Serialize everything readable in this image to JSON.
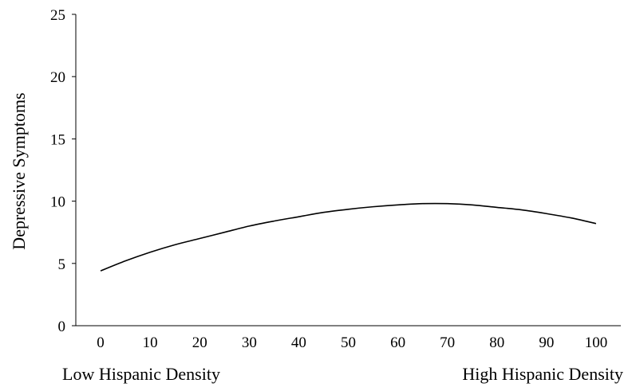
{
  "chart_data": {
    "type": "line",
    "title": "",
    "xlabel": "",
    "ylabel": "Depressive Symptoms",
    "xlim": [
      -5,
      105
    ],
    "ylim": [
      0,
      25
    ],
    "x_ticks": [
      0,
      10,
      20,
      30,
      40,
      50,
      60,
      70,
      80,
      90,
      100
    ],
    "y_ticks": [
      0,
      5,
      10,
      15,
      20,
      25
    ],
    "grid": false,
    "legend": "none",
    "x_end_labels": {
      "left": "Low Hispanic Density",
      "right": "High Hispanic Density"
    },
    "series": [
      {
        "color": "#000000",
        "x": [
          0,
          5,
          10,
          15,
          20,
          25,
          30,
          35,
          40,
          45,
          50,
          55,
          60,
          65,
          70,
          75,
          80,
          85,
          90,
          95,
          100
        ],
        "y": [
          4.4,
          5.2,
          5.9,
          6.5,
          7.0,
          7.5,
          8.0,
          8.4,
          8.75,
          9.1,
          9.35,
          9.55,
          9.7,
          9.8,
          9.8,
          9.7,
          9.5,
          9.3,
          9.0,
          8.65,
          8.2
        ]
      }
    ]
  },
  "colors": {
    "axis": "#000000",
    "line": "#000000"
  }
}
